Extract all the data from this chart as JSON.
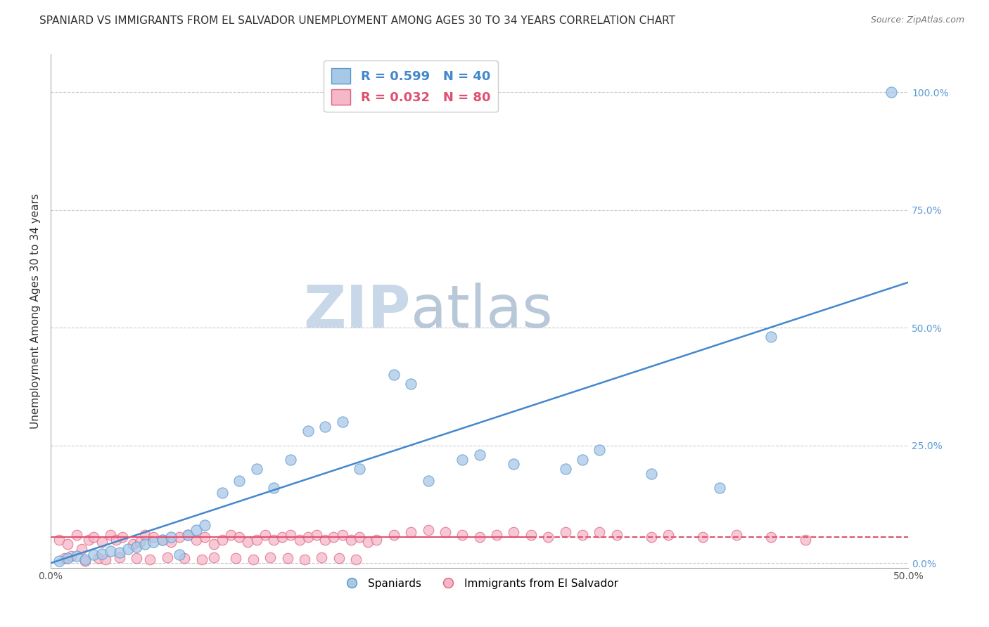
{
  "title": "SPANIARD VS IMMIGRANTS FROM EL SALVADOR UNEMPLOYMENT AMONG AGES 30 TO 34 YEARS CORRELATION CHART",
  "source": "Source: ZipAtlas.com",
  "ylabel": "Unemployment Among Ages 30 to 34 years",
  "xlim": [
    0.0,
    0.5
  ],
  "ylim": [
    -0.01,
    1.08
  ],
  "xticks": [
    0.0,
    0.1,
    0.2,
    0.3,
    0.4,
    0.5
  ],
  "xticklabels": [
    "0.0%",
    "",
    "",
    "",
    "",
    "50.0%"
  ],
  "yticks_right": [
    0.0,
    0.25,
    0.5,
    0.75,
    1.0
  ],
  "yticklabels_right": [
    "0.0%",
    "25.0%",
    "50.0%",
    "75.0%",
    "100.0%"
  ],
  "watermark": "ZIPatlas",
  "legend_label1": "Spaniards",
  "legend_label2": "Immigrants from El Salvador",
  "R1": 0.599,
  "N1": 40,
  "R2": 0.032,
  "N2": 80,
  "color_blue": "#a8c8e8",
  "color_pink": "#f4b8c8",
  "color_blue_edge": "#5599cc",
  "color_pink_edge": "#e06080",
  "color_blue_line": "#4488cc",
  "color_pink_line": "#e05070",
  "blue_dots_x": [
    0.005,
    0.01,
    0.015,
    0.02,
    0.025,
    0.03,
    0.035,
    0.04,
    0.045,
    0.05,
    0.055,
    0.06,
    0.065,
    0.07,
    0.075,
    0.08,
    0.085,
    0.09,
    0.1,
    0.11,
    0.12,
    0.13,
    0.14,
    0.15,
    0.16,
    0.17,
    0.18,
    0.2,
    0.21,
    0.22,
    0.24,
    0.25,
    0.27,
    0.3,
    0.31,
    0.32,
    0.35,
    0.39,
    0.42,
    0.49
  ],
  "blue_dots_y": [
    0.005,
    0.01,
    0.015,
    0.008,
    0.018,
    0.02,
    0.025,
    0.022,
    0.03,
    0.035,
    0.04,
    0.045,
    0.05,
    0.055,
    0.018,
    0.06,
    0.07,
    0.08,
    0.15,
    0.175,
    0.2,
    0.16,
    0.22,
    0.28,
    0.29,
    0.3,
    0.2,
    0.4,
    0.38,
    0.175,
    0.22,
    0.23,
    0.21,
    0.2,
    0.22,
    0.24,
    0.19,
    0.16,
    0.48,
    1.0
  ],
  "pink_dots_x": [
    0.005,
    0.01,
    0.015,
    0.018,
    0.022,
    0.025,
    0.03,
    0.035,
    0.038,
    0.042,
    0.048,
    0.052,
    0.055,
    0.06,
    0.065,
    0.07,
    0.075,
    0.08,
    0.085,
    0.09,
    0.095,
    0.1,
    0.105,
    0.11,
    0.115,
    0.12,
    0.125,
    0.13,
    0.135,
    0.14,
    0.145,
    0.15,
    0.155,
    0.16,
    0.165,
    0.17,
    0.175,
    0.18,
    0.185,
    0.19,
    0.008,
    0.012,
    0.02,
    0.028,
    0.032,
    0.04,
    0.05,
    0.058,
    0.068,
    0.078,
    0.088,
    0.095,
    0.108,
    0.118,
    0.128,
    0.138,
    0.148,
    0.158,
    0.168,
    0.178,
    0.2,
    0.21,
    0.22,
    0.23,
    0.24,
    0.25,
    0.26,
    0.27,
    0.28,
    0.29,
    0.3,
    0.31,
    0.32,
    0.33,
    0.35,
    0.36,
    0.38,
    0.4,
    0.42,
    0.44
  ],
  "pink_dots_y": [
    0.05,
    0.04,
    0.06,
    0.03,
    0.05,
    0.055,
    0.045,
    0.06,
    0.05,
    0.055,
    0.04,
    0.045,
    0.06,
    0.055,
    0.05,
    0.045,
    0.055,
    0.06,
    0.05,
    0.055,
    0.04,
    0.05,
    0.06,
    0.055,
    0.045,
    0.05,
    0.06,
    0.05,
    0.055,
    0.06,
    0.05,
    0.055,
    0.06,
    0.05,
    0.055,
    0.06,
    0.05,
    0.055,
    0.045,
    0.05,
    0.01,
    0.015,
    0.005,
    0.01,
    0.008,
    0.012,
    0.01,
    0.008,
    0.012,
    0.01,
    0.008,
    0.012,
    0.01,
    0.008,
    0.012,
    0.01,
    0.008,
    0.012,
    0.01,
    0.008,
    0.06,
    0.065,
    0.07,
    0.065,
    0.06,
    0.055,
    0.06,
    0.065,
    0.06,
    0.055,
    0.065,
    0.06,
    0.065,
    0.06,
    0.055,
    0.06,
    0.055,
    0.06,
    0.055,
    0.05
  ],
  "blue_line_x": [
    0.0,
    0.52
  ],
  "blue_line_y": [
    0.0,
    0.62
  ],
  "pink_line_x": [
    0.0,
    0.5
  ],
  "pink_line_y": [
    0.055,
    0.055
  ],
  "pink_line_solid_end": 0.28,
  "background_color": "#ffffff",
  "grid_color": "#cccccc",
  "title_fontsize": 11,
  "axis_label_fontsize": 11,
  "tick_fontsize": 10,
  "watermark_color": "#cdd8e5",
  "watermark_fontsize": 60
}
